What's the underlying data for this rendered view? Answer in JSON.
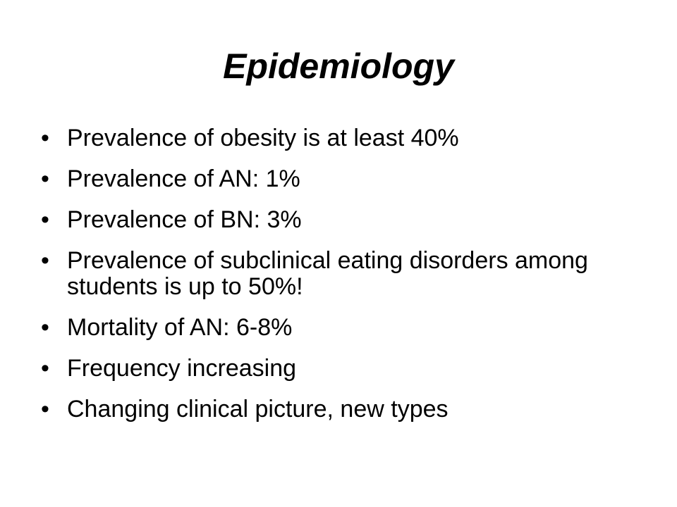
{
  "title": "Epidemiology",
  "bullets": [
    "Prevalence of obesity is at least 40%",
    "Prevalence of AN: 1%",
    "Prevalence of BN: 3%",
    "Prevalence of subclinical eating disorders among students is up to 50%!",
    "Mortality of AN: 6-8%",
    "Frequency increasing",
    "Changing clinical picture, new types"
  ]
}
